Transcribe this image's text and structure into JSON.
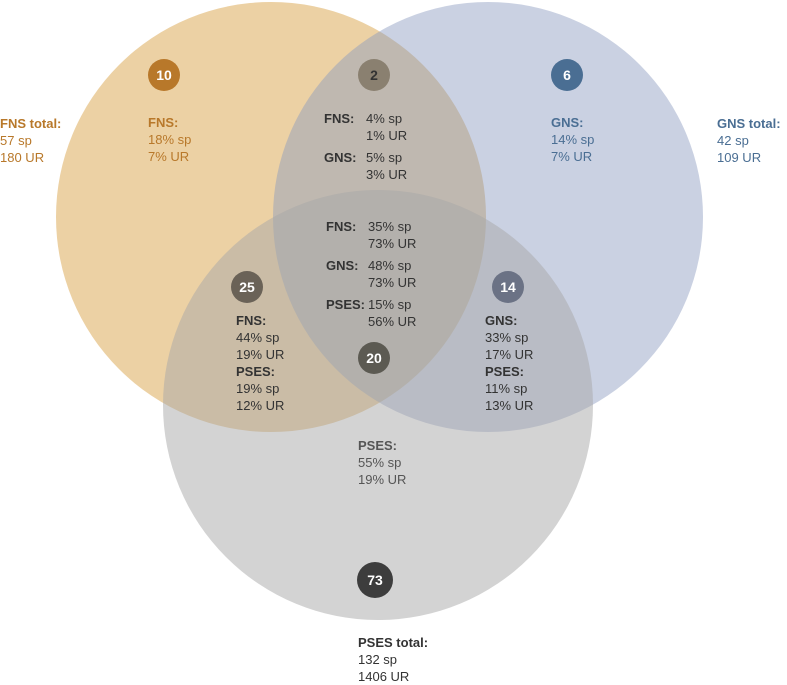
{
  "colors": {
    "fns": "#d9a44a",
    "gns": "#8a99bf",
    "pses": "#a8a8a8",
    "fns_text": "#b8782a",
    "gns_text": "#4a6e93"
  },
  "totals": {
    "fns": {
      "title": "FNS total:",
      "sp": "57 sp",
      "ur": "180 UR"
    },
    "gns": {
      "title": "GNS total:",
      "sp": "42 sp",
      "ur": "109 UR"
    },
    "pses": {
      "title": "PSES total:",
      "sp": "132 sp",
      "ur": "1406 UR"
    }
  },
  "regions": {
    "fns_only": {
      "count": "10",
      "label": "FNS:",
      "sp": "18% sp",
      "ur": "7% UR"
    },
    "gns_only": {
      "count": "6",
      "label": "GNS:",
      "sp": "14% sp",
      "ur": "7% UR"
    },
    "pses_only": {
      "count": "73",
      "label": "PSES:",
      "sp": "55% sp",
      "ur": "19% UR"
    },
    "fns_gns": {
      "count": "2",
      "fns_label": "FNS:",
      "fns_sp": "4% sp",
      "fns_ur": "1% UR",
      "gns_label": "GNS:",
      "gns_sp": "5% sp",
      "gns_ur": "3% UR"
    },
    "fns_pses": {
      "count": "25",
      "fns_label": "FNS:",
      "fns_sp": "44% sp",
      "fns_ur": "19% UR",
      "pses_label": "PSES:",
      "pses_sp": "19% sp",
      "pses_ur": "12% UR"
    },
    "gns_pses": {
      "count": "14",
      "gns_label": "GNS:",
      "gns_sp": "33% sp",
      "gns_ur": "17% UR",
      "pses_label": "PSES:",
      "pses_sp": "11% sp",
      "pses_ur": "13% UR"
    },
    "all": {
      "count": "20",
      "fns_label": "FNS:",
      "fns_sp": "35% sp",
      "fns_ur": "73% UR",
      "gns_label": "GNS:",
      "gns_sp": "48% sp",
      "gns_ur": "73% UR",
      "pses_label": "PSES:",
      "pses_sp": "15% sp",
      "pses_ur": "56% UR"
    }
  }
}
